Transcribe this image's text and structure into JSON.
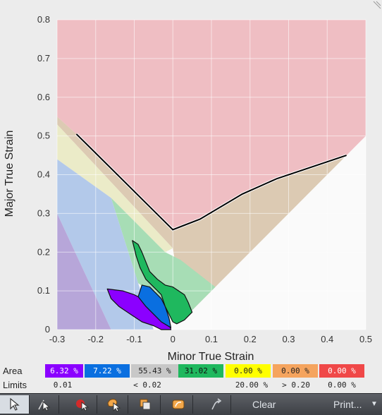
{
  "chart_data": {
    "type": "area",
    "xlabel": "Minor True Strain",
    "ylabel": "Major True Strain",
    "xlim": [
      -0.3,
      0.5
    ],
    "ylim": [
      0,
      0.8
    ],
    "xticks": [
      -0.3,
      -0.2,
      -0.1,
      0,
      0.1,
      0.2,
      0.3,
      0.4,
      0.5
    ],
    "yticks": [
      0,
      0.1,
      0.2,
      0.3,
      0.4,
      0.5,
      0.6,
      0.7,
      0.8
    ],
    "xtick_labels": [
      "-0.3",
      "-0.2",
      "-0.1",
      "0",
      "0.1",
      "0.2",
      "0.3",
      "0.4",
      "0.5"
    ],
    "ytick_labels": [
      "0",
      "0.1",
      "0.2",
      "0.3",
      "0.4",
      "0.5",
      "0.6",
      "0.7",
      "0.8"
    ],
    "grid": true,
    "zones": [
      {
        "color": "#efbec3",
        "points": [
          [
            -0.3,
            0.8
          ],
          [
            0.5,
            0.8
          ],
          [
            0.5,
            0.5
          ],
          [
            0.45,
            0.45
          ],
          [
            0.27,
            0.39
          ],
          [
            0.18,
            0.35
          ],
          [
            0.07,
            0.285
          ],
          [
            0,
            0.258
          ],
          [
            -0.25,
            0.505
          ],
          [
            -0.3,
            0.55
          ]
        ]
      },
      {
        "color": "#dccab3",
        "points": [
          [
            -0.3,
            0.55
          ],
          [
            -0.25,
            0.505
          ],
          [
            0,
            0.258
          ],
          [
            0.07,
            0.285
          ],
          [
            0.18,
            0.35
          ],
          [
            0.27,
            0.39
          ],
          [
            0.45,
            0.45
          ],
          [
            0.03,
            0.03
          ],
          [
            0,
            0.21
          ],
          [
            -0.3,
            0.53
          ]
        ]
      },
      {
        "color": "#ebebc8",
        "points": [
          [
            -0.3,
            0.53
          ],
          [
            0,
            0.21
          ],
          [
            -0.02,
            0.2
          ],
          [
            -0.16,
            0.34
          ],
          [
            -0.3,
            0.44
          ]
        ]
      },
      {
        "color": "#a7ddb5",
        "points": [
          [
            -0.16,
            0.34
          ],
          [
            -0.02,
            0.2
          ],
          [
            0.02,
            0.18
          ],
          [
            0.11,
            0.11
          ],
          [
            0.03,
            0.03
          ],
          [
            -0.09,
            0.12
          ]
        ]
      },
      {
        "color": "#b3c9ea",
        "points": [
          [
            -0.3,
            0.44
          ],
          [
            -0.16,
            0.34
          ],
          [
            -0.09,
            0.12
          ],
          [
            -0.05,
            0
          ],
          [
            -0.16,
            0
          ],
          [
            -0.3,
            0.3
          ]
        ]
      },
      {
        "color": "#b7a6d9",
        "points": [
          [
            -0.3,
            0.3
          ],
          [
            -0.16,
            0
          ],
          [
            -0.3,
            0
          ]
        ]
      }
    ],
    "flc_curve": [
      [
        -0.25,
        0.505
      ],
      [
        0,
        0.258
      ],
      [
        0.07,
        0.285
      ],
      [
        0.18,
        0.35
      ],
      [
        0.27,
        0.39
      ],
      [
        0.45,
        0.45
      ]
    ],
    "measured_regions": [
      {
        "color": "#8b00ff",
        "points": [
          [
            -0.17,
            0.105
          ],
          [
            -0.13,
            0.1
          ],
          [
            -0.1,
            0.09
          ],
          [
            -0.07,
            0.075
          ],
          [
            -0.05,
            0.06
          ],
          [
            -0.03,
            0.04
          ],
          [
            -0.01,
            0.02
          ],
          [
            -0.005,
            0
          ],
          [
            -0.03,
            0
          ],
          [
            -0.05,
            0.01
          ],
          [
            -0.08,
            0.02
          ],
          [
            -0.11,
            0.04
          ],
          [
            -0.14,
            0.06
          ],
          [
            -0.16,
            0.08
          ]
        ]
      },
      {
        "color": "#0a6fe0",
        "points": [
          [
            -0.08,
            0.115
          ],
          [
            -0.06,
            0.11
          ],
          [
            -0.05,
            0.1
          ],
          [
            -0.03,
            0.08
          ],
          [
            -0.02,
            0.06
          ],
          [
            -0.01,
            0.03
          ],
          [
            -0.005,
            0.005
          ],
          [
            -0.03,
            0.02
          ],
          [
            -0.05,
            0.04
          ],
          [
            -0.07,
            0.06
          ],
          [
            -0.09,
            0.085
          ]
        ]
      },
      {
        "color": "#1fb85e",
        "points": [
          [
            -0.105,
            0.23
          ],
          [
            -0.09,
            0.22
          ],
          [
            -0.08,
            0.2
          ],
          [
            -0.06,
            0.15
          ],
          [
            -0.04,
            0.13
          ],
          [
            -0.02,
            0.115
          ],
          [
            0.0,
            0.11
          ],
          [
            0.03,
            0.09
          ],
          [
            0.04,
            0.07
          ],
          [
            0.05,
            0.045
          ],
          [
            0.03,
            0.025
          ],
          [
            0.01,
            0.015
          ],
          [
            0.0,
            0.02
          ],
          [
            -0.02,
            0.06
          ],
          [
            -0.03,
            0.09
          ],
          [
            -0.05,
            0.11
          ],
          [
            -0.07,
            0.13
          ],
          [
            -0.085,
            0.16
          ],
          [
            -0.095,
            0.19
          ]
        ]
      }
    ]
  },
  "legend": {
    "area_label": "Area",
    "limits_label": "Limits",
    "area_cells": [
      {
        "text": "6.32 %",
        "bg": "#8b00ff",
        "fg": "#ffffff"
      },
      {
        "text": "7.22 %",
        "bg": "#0a6fe0",
        "fg": "#ffffff"
      },
      {
        "text": "55.43 %",
        "bg": "#c8c8c8",
        "fg": "#222222"
      },
      {
        "text": "31.02 %",
        "bg": "#1fb85e",
        "fg": "#111111"
      },
      {
        "text": "0.00 %",
        "bg": "#ffff00",
        "fg": "#222222"
      },
      {
        "text": "0.00 %",
        "bg": "#f5a45e",
        "fg": "#222222"
      },
      {
        "text": "0.00 %",
        "bg": "#f04848",
        "fg": "#ffffff"
      }
    ],
    "limits_cells": [
      "0.01",
      "< 0.02",
      "20.00 %",
      "> 0.20",
      "0.00 %"
    ]
  },
  "toolbar": {
    "clear_label": "Clear",
    "print_label": "Print..."
  }
}
